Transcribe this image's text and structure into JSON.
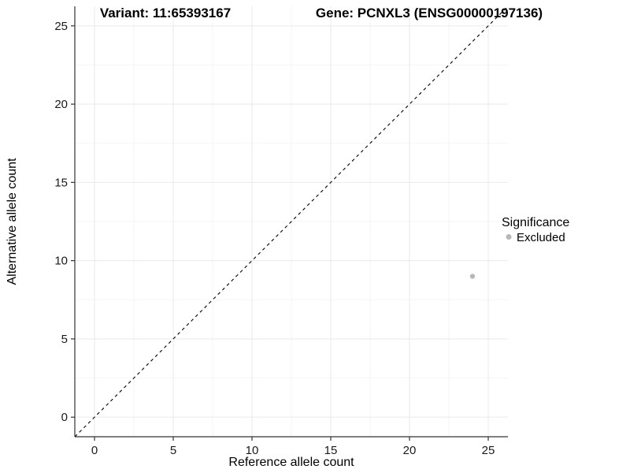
{
  "legend": {
    "title": "Significance",
    "items": [
      {
        "label": "Excluded",
        "color": "#b8b8b8"
      }
    ]
  },
  "chart_data": {
    "type": "scatter",
    "title_left": "Variant: 11:65393167",
    "title_right": "Gene: PCNXL3 (ENSG00000197136)",
    "xlabel": "Reference allele count",
    "ylabel": "Alternative allele count",
    "x_ticks": [
      0,
      5,
      10,
      15,
      20,
      25
    ],
    "y_ticks": [
      0,
      5,
      10,
      15,
      20,
      25
    ],
    "xlim": [
      -1.25,
      26.25
    ],
    "ylim": [
      -1.25,
      26.25
    ],
    "minor_tick_interval": 2.5,
    "grid": "major+minor",
    "legend_position": "right",
    "series": [
      {
        "name": "Excluded",
        "color": "#b8b8b8",
        "points": [
          {
            "x": 24,
            "y": 9
          }
        ]
      }
    ],
    "reference_line": {
      "slope": 1,
      "intercept": 0,
      "style": "dashed",
      "color": "#000000"
    }
  },
  "colors": {
    "background": "#ffffff",
    "grid_major": "#e9e9e9",
    "grid_minor": "#f5f5f5",
    "axis_line": "#333333",
    "tick_mark": "#333333",
    "point": "#b8b8b8"
  }
}
